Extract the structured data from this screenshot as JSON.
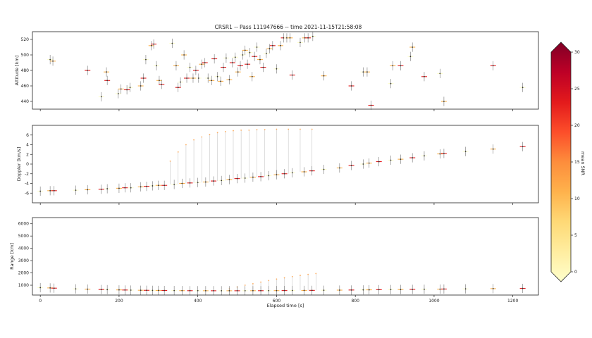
{
  "figure": {
    "title": "CRSR1 -- Pass 111947666 -- time 2021-11-15T21:58:08",
    "xlabel": "Elapsed time [s]",
    "colorbar": {
      "label": "mean SNR",
      "min": 0,
      "max": 30,
      "ticks": [
        0,
        5,
        10,
        15,
        20,
        25,
        30
      ],
      "colormap": [
        "#ffffcc",
        "#ffeda0",
        "#fed976",
        "#feb24c",
        "#fd8d3c",
        "#fc4e2a",
        "#e31a1c",
        "#bd0026",
        "#800026"
      ]
    }
  },
  "chart_data": [
    {
      "type": "scatter",
      "ylabel": "Altitude [km]",
      "xlim": [
        -20,
        1265
      ],
      "ylim": [
        430,
        530
      ],
      "xticks": [
        0,
        200,
        400,
        600,
        800,
        1000,
        1200
      ],
      "yticks": [
        440,
        460,
        480,
        500,
        520
      ],
      "grid": false,
      "points": [
        {
          "x": 25,
          "y": 494
        },
        {
          "x": 32,
          "y": 492
        },
        {
          "x": 120,
          "y": 480
        },
        {
          "x": 155,
          "y": 446
        },
        {
          "x": 168,
          "y": 478
        },
        {
          "x": 170,
          "y": 467
        },
        {
          "x": 198,
          "y": 450
        },
        {
          "x": 205,
          "y": 456
        },
        {
          "x": 220,
          "y": 455
        },
        {
          "x": 228,
          "y": 458
        },
        {
          "x": 255,
          "y": 460
        },
        {
          "x": 262,
          "y": 470
        },
        {
          "x": 268,
          "y": 494
        },
        {
          "x": 282,
          "y": 512
        },
        {
          "x": 288,
          "y": 514
        },
        {
          "x": 295,
          "y": 486
        },
        {
          "x": 302,
          "y": 467
        },
        {
          "x": 308,
          "y": 462
        },
        {
          "x": 335,
          "y": 515
        },
        {
          "x": 345,
          "y": 486
        },
        {
          "x": 350,
          "y": 458
        },
        {
          "x": 356,
          "y": 465
        },
        {
          "x": 365,
          "y": 500
        },
        {
          "x": 372,
          "y": 470
        },
        {
          "x": 380,
          "y": 484
        },
        {
          "x": 388,
          "y": 470
        },
        {
          "x": 395,
          "y": 480
        },
        {
          "x": 402,
          "y": 470
        },
        {
          "x": 410,
          "y": 488
        },
        {
          "x": 418,
          "y": 490
        },
        {
          "x": 426,
          "y": 470
        },
        {
          "x": 435,
          "y": 467
        },
        {
          "x": 442,
          "y": 495
        },
        {
          "x": 450,
          "y": 472
        },
        {
          "x": 458,
          "y": 466
        },
        {
          "x": 465,
          "y": 484
        },
        {
          "x": 472,
          "y": 496
        },
        {
          "x": 480,
          "y": 468
        },
        {
          "x": 488,
          "y": 490
        },
        {
          "x": 495,
          "y": 497
        },
        {
          "x": 502,
          "y": 478
        },
        {
          "x": 508,
          "y": 486
        },
        {
          "x": 514,
          "y": 500
        },
        {
          "x": 520,
          "y": 506
        },
        {
          "x": 526,
          "y": 488
        },
        {
          "x": 532,
          "y": 503
        },
        {
          "x": 538,
          "y": 472
        },
        {
          "x": 544,
          "y": 498
        },
        {
          "x": 550,
          "y": 510
        },
        {
          "x": 558,
          "y": 494
        },
        {
          "x": 566,
          "y": 484
        },
        {
          "x": 574,
          "y": 502
        },
        {
          "x": 582,
          "y": 508
        },
        {
          "x": 590,
          "y": 512
        },
        {
          "x": 600,
          "y": 482
        },
        {
          "x": 610,
          "y": 512
        },
        {
          "x": 618,
          "y": 522
        },
        {
          "x": 626,
          "y": 522
        },
        {
          "x": 634,
          "y": 522
        },
        {
          "x": 640,
          "y": 474
        },
        {
          "x": 660,
          "y": 516
        },
        {
          "x": 672,
          "y": 522
        },
        {
          "x": 680,
          "y": 522
        },
        {
          "x": 692,
          "y": 524
        },
        {
          "x": 720,
          "y": 473
        },
        {
          "x": 790,
          "y": 460
        },
        {
          "x": 820,
          "y": 478
        },
        {
          "x": 830,
          "y": 478
        },
        {
          "x": 840,
          "y": 435
        },
        {
          "x": 890,
          "y": 463
        },
        {
          "x": 895,
          "y": 486
        },
        {
          "x": 915,
          "y": 486
        },
        {
          "x": 940,
          "y": 498
        },
        {
          "x": 945,
          "y": 510
        },
        {
          "x": 975,
          "y": 472
        },
        {
          "x": 1015,
          "y": 476
        },
        {
          "x": 1025,
          "y": 440
        },
        {
          "x": 1150,
          "y": 486
        },
        {
          "x": 1225,
          "y": 458
        }
      ]
    },
    {
      "type": "scatter",
      "ylabel": "Doppler [km/s]",
      "xlim": [
        -20,
        1265
      ],
      "ylim": [
        -8,
        8
      ],
      "xticks": [
        0,
        200,
        400,
        600,
        800,
        1000,
        1200
      ],
      "yticks": [
        -6,
        -4,
        -2,
        0,
        2,
        4,
        6
      ],
      "grid": false,
      "points": [
        {
          "x": 0,
          "y": -5.6
        },
        {
          "x": 25,
          "y": -5.5
        },
        {
          "x": 35,
          "y": -5.5
        },
        {
          "x": 90,
          "y": -5.4
        },
        {
          "x": 120,
          "y": -5.3
        },
        {
          "x": 155,
          "y": -5.2
        },
        {
          "x": 170,
          "y": -5.1
        },
        {
          "x": 200,
          "y": -5.0
        },
        {
          "x": 215,
          "y": -4.9
        },
        {
          "x": 230,
          "y": -4.9
        },
        {
          "x": 255,
          "y": -4.7
        },
        {
          "x": 270,
          "y": -4.6
        },
        {
          "x": 285,
          "y": -4.5
        },
        {
          "x": 300,
          "y": -4.4
        },
        {
          "x": 315,
          "y": -4.4
        },
        {
          "x": 340,
          "y": -4.2
        },
        {
          "x": 360,
          "y": -4.0
        },
        {
          "x": 380,
          "y": -3.9
        },
        {
          "x": 400,
          "y": -3.8
        },
        {
          "x": 420,
          "y": -3.7
        },
        {
          "x": 440,
          "y": -3.5
        },
        {
          "x": 460,
          "y": -3.4
        },
        {
          "x": 480,
          "y": -3.2
        },
        {
          "x": 500,
          "y": -3.0
        },
        {
          "x": 520,
          "y": -2.9
        },
        {
          "x": 540,
          "y": -2.7
        },
        {
          "x": 560,
          "y": -2.6
        },
        {
          "x": 580,
          "y": -2.4
        },
        {
          "x": 600,
          "y": -2.2
        },
        {
          "x": 620,
          "y": -2.0
        },
        {
          "x": 640,
          "y": -1.8
        },
        {
          "x": 670,
          "y": -1.6
        },
        {
          "x": 690,
          "y": -1.4
        },
        {
          "x": 720,
          "y": -1.1
        },
        {
          "x": 760,
          "y": -0.8
        },
        {
          "x": 790,
          "y": -0.3
        },
        {
          "x": 820,
          "y": 0.0
        },
        {
          "x": 835,
          "y": 0.2
        },
        {
          "x": 860,
          "y": 0.5
        },
        {
          "x": 890,
          "y": 0.8
        },
        {
          "x": 915,
          "y": 1.0
        },
        {
          "x": 945,
          "y": 1.3
        },
        {
          "x": 975,
          "y": 1.7
        },
        {
          "x": 1015,
          "y": 2.1
        },
        {
          "x": 1025,
          "y": 2.2
        },
        {
          "x": 1080,
          "y": 2.6
        },
        {
          "x": 1150,
          "y": 3.1
        },
        {
          "x": 1225,
          "y": 3.6
        }
      ],
      "upper_branch": {
        "x": [
          330,
          350,
          370,
          390,
          410,
          430,
          450,
          470,
          490,
          510,
          530,
          550,
          570,
          600,
          630,
          660,
          690
        ],
        "y": [
          0.6,
          2.5,
          4.0,
          5.0,
          5.6,
          6.1,
          6.5,
          6.7,
          6.9,
          7.0,
          7.0,
          7.1,
          7.1,
          7.2,
          7.2,
          7.2,
          7.2
        ]
      }
    },
    {
      "type": "scatter",
      "ylabel": "Range [km]",
      "xlim": [
        -20,
        1265
      ],
      "ylim": [
        200,
        6500
      ],
      "xticks": [
        0,
        200,
        400,
        600,
        800,
        1000,
        1200
      ],
      "yticks": [
        1000,
        2000,
        3000,
        4000,
        5000,
        6000
      ],
      "grid": false,
      "points": [
        {
          "x": 0,
          "y": 800
        },
        {
          "x": 25,
          "y": 780
        },
        {
          "x": 35,
          "y": 760
        },
        {
          "x": 90,
          "y": 700
        },
        {
          "x": 120,
          "y": 680
        },
        {
          "x": 155,
          "y": 650
        },
        {
          "x": 170,
          "y": 640
        },
        {
          "x": 200,
          "y": 620
        },
        {
          "x": 215,
          "y": 610
        },
        {
          "x": 230,
          "y": 600
        },
        {
          "x": 255,
          "y": 590
        },
        {
          "x": 270,
          "y": 585
        },
        {
          "x": 285,
          "y": 580
        },
        {
          "x": 300,
          "y": 575
        },
        {
          "x": 315,
          "y": 570
        },
        {
          "x": 340,
          "y": 565
        },
        {
          "x": 360,
          "y": 560
        },
        {
          "x": 380,
          "y": 555
        },
        {
          "x": 400,
          "y": 555
        },
        {
          "x": 420,
          "y": 552
        },
        {
          "x": 440,
          "y": 550
        },
        {
          "x": 460,
          "y": 550
        },
        {
          "x": 480,
          "y": 550
        },
        {
          "x": 500,
          "y": 550
        },
        {
          "x": 520,
          "y": 552
        },
        {
          "x": 540,
          "y": 555
        },
        {
          "x": 560,
          "y": 555
        },
        {
          "x": 580,
          "y": 558
        },
        {
          "x": 600,
          "y": 560
        },
        {
          "x": 620,
          "y": 565
        },
        {
          "x": 640,
          "y": 570
        },
        {
          "x": 670,
          "y": 575
        },
        {
          "x": 690,
          "y": 580
        },
        {
          "x": 720,
          "y": 590
        },
        {
          "x": 760,
          "y": 600
        },
        {
          "x": 790,
          "y": 610
        },
        {
          "x": 820,
          "y": 620
        },
        {
          "x": 835,
          "y": 625
        },
        {
          "x": 860,
          "y": 635
        },
        {
          "x": 890,
          "y": 645
        },
        {
          "x": 915,
          "y": 650
        },
        {
          "x": 945,
          "y": 660
        },
        {
          "x": 975,
          "y": 670
        },
        {
          "x": 1015,
          "y": 680
        },
        {
          "x": 1025,
          "y": 690
        },
        {
          "x": 1080,
          "y": 700
        },
        {
          "x": 1150,
          "y": 720
        },
        {
          "x": 1225,
          "y": 740
        }
      ],
      "upper_branch": {
        "x": [
          480,
          500,
          520,
          540,
          560,
          580,
          600,
          620,
          640,
          660,
          680,
          700
        ],
        "y": [
          700,
          850,
          1000,
          1120,
          1250,
          1380,
          1500,
          1600,
          1700,
          1800,
          1880,
          1950
        ]
      }
    }
  ]
}
